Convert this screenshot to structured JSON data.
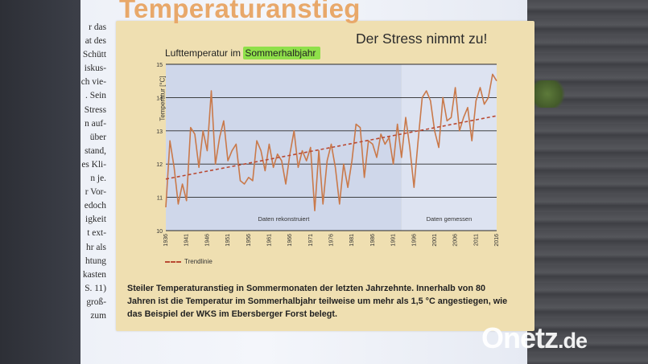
{
  "heading": "Temperaturanstieg",
  "subtitle": "Der Stress nimmt zu!",
  "article_lines": [
    "r das",
    "at des",
    "Schütt",
    "iskus-",
    "ch vie-",
    ". Sein",
    "Stress",
    "n auf-",
    "über",
    "stand,",
    "es Kli-",
    "n je.",
    "r Vor-",
    "edoch",
    "igkeit",
    "t ext-",
    "hr als",
    "htung",
    "kasten",
    "S. 11)",
    "groß-",
    "zum"
  ],
  "caption": "Steiler Temperaturanstieg in Sommermonaten der letzten Jahrzehnte. Innerhalb von 80 Jahren ist die Temperatur im Sommerhalbjahr teilweise um mehr als 1,5 °C angestiegen, wie das Beispiel der WKS im Ebersberger Forst belegt.",
  "watermark": {
    "name": "Onetz",
    "tld": ".de"
  },
  "chart_data": {
    "type": "line",
    "title_prefix": "Lufttemperatur im ",
    "title_highlight": "Sommerhalbjahr",
    "ylabel": "Temperatur [°C]",
    "xlim": [
      1936,
      2016
    ],
    "ylim": [
      10,
      15
    ],
    "yticks": [
      10,
      11,
      12,
      13,
      14,
      15
    ],
    "xticks": [
      1936,
      1941,
      1946,
      1951,
      1956,
      1961,
      1966,
      1971,
      1976,
      1981,
      1986,
      1991,
      1996,
      2001,
      2006,
      2011,
      2016
    ],
    "grid": true,
    "regions": [
      {
        "label": "Daten rekonstruiert",
        "from": 1936,
        "to": 1993
      },
      {
        "label": "Daten gemessen",
        "from": 1993,
        "to": 2016
      }
    ],
    "series": [
      {
        "color": "#c9794a",
        "x": [
          1936,
          1937,
          1938,
          1939,
          1940,
          1941,
          1942,
          1943,
          1944,
          1945,
          1946,
          1947,
          1948,
          1949,
          1950,
          1951,
          1952,
          1953,
          1954,
          1955,
          1956,
          1957,
          1958,
          1959,
          1960,
          1961,
          1962,
          1963,
          1964,
          1965,
          1966,
          1967,
          1968,
          1969,
          1970,
          1971,
          1972,
          1973,
          1974,
          1975,
          1976,
          1977,
          1978,
          1979,
          1980,
          1981,
          1982,
          1983,
          1984,
          1985,
          1986,
          1987,
          1988,
          1989,
          1990,
          1991,
          1992,
          1993,
          1994,
          1995,
          1996,
          1997,
          1998,
          1999,
          2000,
          2001,
          2002,
          2003,
          2004,
          2005,
          2006,
          2007,
          2008,
          2009,
          2010,
          2011,
          2012,
          2013,
          2014,
          2015,
          2016
        ],
        "values": [
          10.7,
          12.7,
          11.9,
          10.8,
          11.4,
          10.9,
          13.1,
          12.9,
          11.9,
          13.0,
          12.4,
          14.2,
          12.0,
          12.8,
          13.3,
          12.1,
          12.4,
          12.6,
          11.5,
          11.4,
          11.6,
          11.5,
          12.7,
          12.4,
          11.8,
          12.6,
          11.9,
          12.3,
          12.1,
          11.4,
          12.3,
          13.0,
          11.9,
          12.4,
          12.1,
          12.5,
          10.6,
          12.4,
          10.8,
          12.1,
          12.6,
          11.9,
          10.8,
          12.0,
          11.3,
          12.1,
          13.2,
          13.1,
          11.6,
          12.7,
          12.6,
          12.2,
          12.9,
          12.6,
          12.8,
          12.0,
          13.2,
          12.2,
          13.4,
          12.5,
          11.3,
          12.7,
          14.0,
          14.2,
          13.9,
          13.0,
          12.5,
          14.0,
          13.3,
          13.4,
          14.3,
          13.0,
          13.4,
          13.7,
          12.7,
          13.9,
          14.3,
          13.8,
          14.0,
          14.7,
          14.5
        ]
      }
    ],
    "trend": {
      "label": "Trendlinie",
      "color": "#b94a33",
      "start": [
        1936,
        11.55
      ],
      "end": [
        2016,
        13.45
      ]
    }
  }
}
